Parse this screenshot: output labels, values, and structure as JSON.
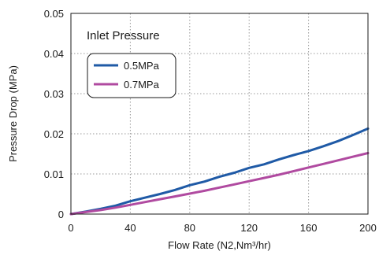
{
  "chart_data": {
    "type": "line",
    "title": "",
    "xlabel": "Flow Rate (N2,Nm³/hr)",
    "ylabel": "Pressure Drop (MPa)",
    "xlim": [
      0,
      200
    ],
    "ylim": [
      0,
      0.05
    ],
    "xticks": [
      0,
      40,
      80,
      120,
      160,
      200
    ],
    "yticks": [
      0,
      0.01,
      0.02,
      0.03,
      0.04,
      0.05
    ],
    "xtick_labels": [
      "0",
      "40",
      "80",
      "120",
      "160",
      "200"
    ],
    "ytick_labels": [
      "0",
      "0.01",
      "0.02",
      "0.03",
      "0.04",
      "0.05"
    ],
    "grid": true,
    "legend": {
      "title": "Inlet Pressure",
      "placement": "top-left"
    },
    "series": [
      {
        "name": "0.5MPa",
        "color": "#1f5aa6",
        "x": [
          0,
          10,
          20,
          30,
          40,
          50,
          60,
          70,
          80,
          90,
          100,
          110,
          120,
          130,
          140,
          150,
          160,
          170,
          180,
          190,
          200
        ],
        "y": [
          0,
          0.0006,
          0.0013,
          0.0021,
          0.0032,
          0.0041,
          0.005,
          0.006,
          0.0072,
          0.0081,
          0.0093,
          0.0103,
          0.0115,
          0.0124,
          0.0136,
          0.0147,
          0.0157,
          0.0169,
          0.0182,
          0.0197,
          0.0213
        ]
      },
      {
        "name": "0.7MPa",
        "color": "#b04aa0",
        "x": [
          0,
          10,
          20,
          30,
          40,
          50,
          60,
          70,
          80,
          90,
          100,
          110,
          120,
          130,
          140,
          150,
          160,
          170,
          180,
          190,
          200
        ],
        "y": [
          0,
          0.0005,
          0.001,
          0.0016,
          0.0023,
          0.003,
          0.0037,
          0.0044,
          0.0051,
          0.0058,
          0.0066,
          0.0074,
          0.0082,
          0.009,
          0.0098,
          0.0107,
          0.0116,
          0.0125,
          0.0134,
          0.0143,
          0.0152
        ]
      }
    ]
  }
}
